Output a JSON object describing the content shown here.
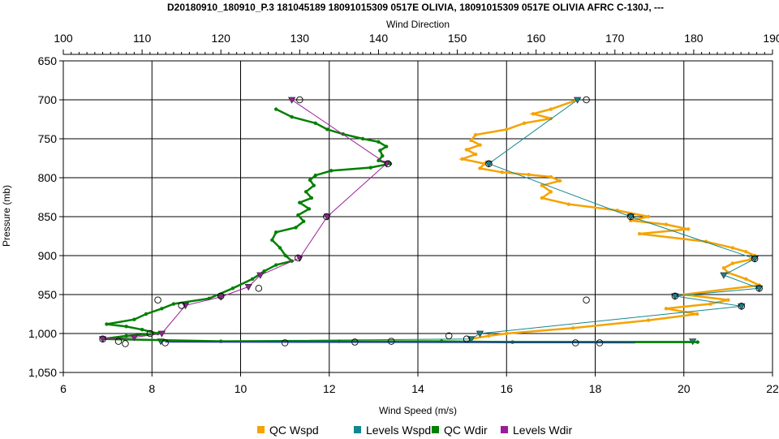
{
  "chart_data": {
    "type": "line",
    "title": "D20180910_180910_P.3 181045189 18091015309 0517E OLIVIA, 18091015309 0517E OLIVIA AFRC C-130J, ---",
    "x_bottom": {
      "label": "Wind Speed (m/s)",
      "range": [
        6,
        22
      ],
      "ticks": [
        6,
        8,
        10,
        12,
        14,
        16,
        18,
        20,
        22
      ]
    },
    "x_top": {
      "label": "Wind Direction",
      "range": [
        100,
        190
      ],
      "ticks": [
        100,
        110,
        120,
        130,
        140,
        150,
        160,
        170,
        180,
        190
      ]
    },
    "y": {
      "label": "Pressure (mb)",
      "range": [
        650,
        1050
      ],
      "inverted": true,
      "ticks": [
        650,
        700,
        750,
        800,
        850,
        900,
        950,
        1000,
        1050
      ],
      "tick_labels": [
        "650",
        "700",
        "750",
        "800",
        "850",
        "900",
        "950",
        "1,000",
        "1,050"
      ]
    },
    "grid": true,
    "legend_position": "bottom",
    "series": [
      {
        "name": "QC Wspd",
        "axis": "bottom",
        "color": "#f5a300",
        "marker": "dot",
        "points": [
          [
            17.6,
            700
          ],
          [
            17.0,
            712
          ],
          [
            16.6,
            718
          ],
          [
            17.0,
            724
          ],
          [
            16.4,
            730
          ],
          [
            16.0,
            738
          ],
          [
            15.3,
            745
          ],
          [
            15.2,
            752
          ],
          [
            15.4,
            758
          ],
          [
            15.1,
            764
          ],
          [
            15.3,
            770
          ],
          [
            15.0,
            776
          ],
          [
            15.5,
            782
          ],
          [
            15.4,
            788
          ],
          [
            15.9,
            793
          ],
          [
            16.5,
            796
          ],
          [
            17.0,
            799
          ],
          [
            17.2,
            804
          ],
          [
            16.8,
            810
          ],
          [
            17.0,
            818
          ],
          [
            16.8,
            826
          ],
          [
            17.4,
            834
          ],
          [
            18.5,
            842
          ],
          [
            19.2,
            850
          ],
          [
            18.8,
            855
          ],
          [
            19.6,
            860
          ],
          [
            20.1,
            866
          ],
          [
            19.0,
            872
          ],
          [
            20.5,
            882
          ],
          [
            21.1,
            890
          ],
          [
            21.4,
            895
          ],
          [
            21.6,
            900
          ],
          [
            21.5,
            905
          ],
          [
            21.1,
            910
          ],
          [
            20.9,
            916
          ],
          [
            21.0,
            922
          ],
          [
            21.4,
            930
          ],
          [
            21.7,
            938
          ],
          [
            20.0,
            950
          ],
          [
            21.0,
            957
          ],
          [
            20.6,
            962
          ],
          [
            19.6,
            968
          ],
          [
            20.3,
            975
          ],
          [
            19.2,
            983
          ],
          [
            17.5,
            993
          ],
          [
            16.0,
            1000
          ],
          [
            15.6,
            1003
          ],
          [
            15.2,
            1007
          ]
        ]
      },
      {
        "name": "Levels Wspd",
        "axis": "bottom",
        "color": "#11888f",
        "marker": "triangle",
        "points": [
          [
            17.6,
            700
          ],
          [
            15.6,
            782
          ],
          [
            18.8,
            850
          ],
          [
            21.6,
            904
          ],
          [
            20.9,
            925
          ],
          [
            21.7,
            942
          ],
          [
            19.8,
            952
          ],
          [
            21.3,
            965
          ],
          [
            15.4,
            1000
          ],
          [
            15.2,
            1007
          ],
          [
            8.2,
            1010
          ],
          [
            20.2,
            1010
          ]
        ]
      },
      {
        "name": "QC Wdir",
        "axis": "top",
        "color": "#008000",
        "marker": "dot",
        "points": [
          [
            127.0,
            712
          ],
          [
            129.0,
            722
          ],
          [
            132.0,
            730
          ],
          [
            133.5,
            738
          ],
          [
            135.5,
            744
          ],
          [
            138.0,
            750
          ],
          [
            140.0,
            754
          ],
          [
            141.0,
            760
          ],
          [
            140.2,
            765
          ],
          [
            140.5,
            772
          ],
          [
            140.0,
            778
          ],
          [
            141.5,
            782
          ],
          [
            139.0,
            787
          ],
          [
            134.0,
            791
          ],
          [
            132.0,
            797
          ],
          [
            131.3,
            803
          ],
          [
            131.8,
            810
          ],
          [
            130.8,
            818
          ],
          [
            131.5,
            826
          ],
          [
            130.0,
            832
          ],
          [
            131.2,
            840
          ],
          [
            129.8,
            848
          ],
          [
            130.5,
            856
          ],
          [
            129.5,
            864
          ],
          [
            127.0,
            870
          ],
          [
            126.5,
            880
          ],
          [
            127.5,
            890
          ],
          [
            128.2,
            900
          ],
          [
            129.0,
            907
          ],
          [
            127.0,
            912
          ],
          [
            125.5,
            920
          ],
          [
            124.0,
            930
          ],
          [
            121.5,
            942
          ],
          [
            118.5,
            955
          ],
          [
            114.0,
            962
          ],
          [
            112.5,
            968
          ],
          [
            110.5,
            975
          ],
          [
            109.0,
            982
          ],
          [
            105.5,
            988
          ],
          [
            108.0,
            991
          ],
          [
            110.0,
            995
          ],
          [
            112.0,
            1000
          ],
          [
            108.0,
            1003
          ],
          [
            105.0,
            1007
          ],
          [
            120.0,
            1010
          ],
          [
            135.0,
            1010
          ],
          [
            148.0,
            1010
          ],
          [
            157.0,
            1011
          ],
          [
            180.5,
            1011
          ]
        ]
      },
      {
        "name": "Levels Wdir",
        "axis": "top",
        "color": "#9b1c9b",
        "marker": "triangle",
        "points": [
          [
            129.0,
            700
          ],
          [
            141.0,
            782
          ],
          [
            133.5,
            850
          ],
          [
            130.0,
            903
          ],
          [
            125.0,
            925
          ],
          [
            123.5,
            940
          ],
          [
            120.0,
            953
          ],
          [
            115.5,
            964
          ],
          [
            112.5,
            1000
          ],
          [
            109.0,
            1005
          ],
          [
            105.0,
            1007
          ]
        ]
      }
    ],
    "open_circles": {
      "wspd": [
        [
          17.8,
          700
        ],
        [
          15.6,
          782
        ],
        [
          18.8,
          850
        ],
        [
          21.6,
          904
        ],
        [
          21.7,
          942
        ],
        [
          19.8,
          952
        ],
        [
          21.3,
          965
        ],
        [
          17.8,
          957
        ],
        [
          14.7,
          1003
        ],
        [
          15.1,
          1007
        ],
        [
          8.3,
          1012
        ],
        [
          11.0,
          1012
        ],
        [
          13.4,
          1010
        ],
        [
          18.1,
          1012
        ],
        [
          7.4,
          1013
        ]
      ],
      "wdir": [
        [
          130.0,
          700
        ],
        [
          141.2,
          782
        ],
        [
          133.4,
          850
        ],
        [
          129.8,
          903
        ],
        [
          124.8,
          942
        ],
        [
          120.0,
          952
        ],
        [
          115.0,
          964
        ],
        [
          112.0,
          957
        ],
        [
          111.0,
          1000
        ],
        [
          105.0,
          1007
        ],
        [
          107.0,
          1010
        ],
        [
          137.0,
          1011
        ],
        [
          165.0,
          1012
        ]
      ]
    },
    "legend": [
      {
        "label": "QC Wspd",
        "color": "#f5a300"
      },
      {
        "label": "Levels Wspd",
        "color": "#11888f"
      },
      {
        "label": "QC Wdir",
        "color": "#008000"
      },
      {
        "label": "Levels Wdir",
        "color": "#9b1c9b"
      }
    ]
  }
}
